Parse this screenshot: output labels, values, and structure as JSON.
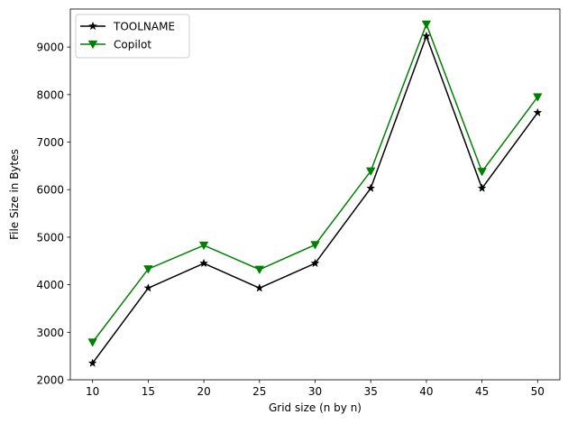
{
  "chart_data": {
    "type": "line",
    "x": [
      10,
      15,
      20,
      25,
      30,
      35,
      40,
      45,
      50
    ],
    "series": [
      {
        "name": "TOOLNAME",
        "color": "#000000",
        "marker": "star",
        "values": [
          2350,
          3930,
          4450,
          3930,
          4450,
          6030,
          9230,
          6030,
          7620
        ]
      },
      {
        "name": "Copilot",
        "color": "#008000",
        "marker": "triangle-down",
        "values": [
          2790,
          4330,
          4830,
          4320,
          4840,
          6390,
          9480,
          6380,
          7950
        ]
      }
    ],
    "xlabel": "Grid size (n by n)",
    "ylabel": "File Size in Bytes",
    "xlim": [
      8,
      52
    ],
    "ylim": [
      2000,
      9800
    ],
    "xticks": [
      10,
      15,
      20,
      25,
      30,
      35,
      40,
      45,
      50
    ],
    "yticks": [
      2000,
      3000,
      4000,
      5000,
      6000,
      7000,
      8000,
      9000
    ],
    "grid": false,
    "legend_position": "top-left"
  }
}
